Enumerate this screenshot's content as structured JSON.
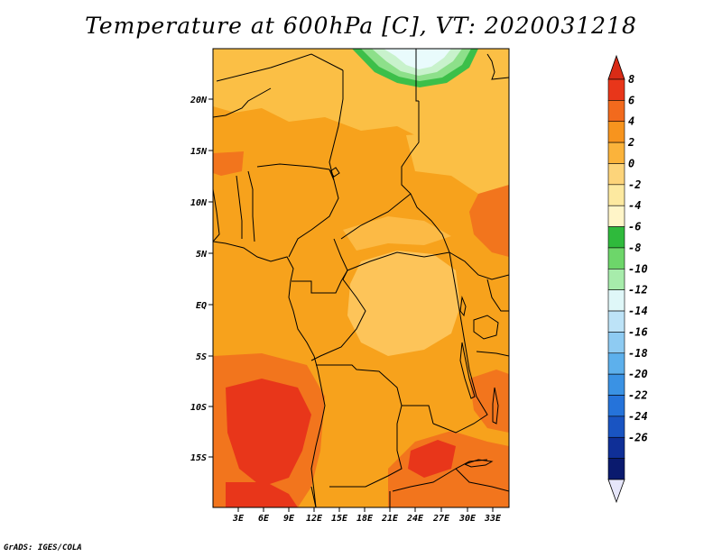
{
  "title": "Temperature at 600hPa [C], VT: 2020031218",
  "credit": "GrADS: IGES/COLA",
  "map": {
    "lat_ticks": [
      "20N",
      "15N",
      "10N",
      "5N",
      "EQ",
      "5S",
      "10S",
      "15S"
    ],
    "lon_ticks": [
      "3E",
      "6E",
      "9E",
      "12E",
      "15E",
      "18E",
      "21E",
      "24E",
      "27E",
      "30E",
      "33E"
    ]
  },
  "colorbar": {
    "labels": [
      "8",
      "6",
      "4",
      "2",
      "0",
      "-2",
      "-4",
      "-6",
      "-8",
      "-10",
      "-12",
      "-14",
      "-16",
      "-18",
      "-20",
      "-22",
      "-24",
      "-26"
    ],
    "colors": [
      "#e8361a",
      "#f26a1d",
      "#f7941e",
      "#fbb33b",
      "#fdd47a",
      "#fde9a0",
      "#fff5c8",
      "#2fba3c",
      "#6dd66a",
      "#a7ecab",
      "#dff7f8",
      "#bde3f7",
      "#8ecbf2",
      "#5db0ec",
      "#3a92e4",
      "#2573da",
      "#1954c2",
      "#0f2f97",
      "#0a1a6e"
    ],
    "top_color": "#d92b16",
    "bottom_color": "#e6e6fa"
  }
}
